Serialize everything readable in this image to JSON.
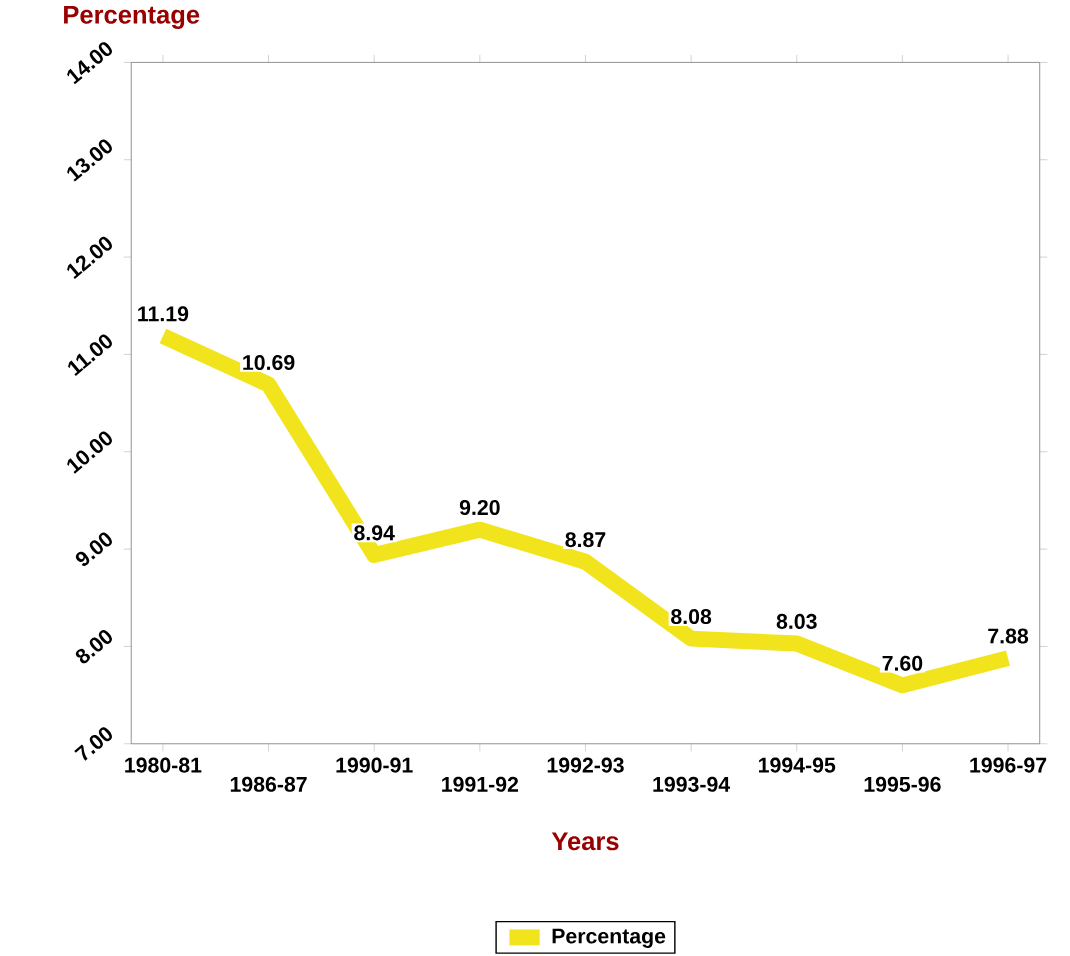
{
  "chart_data": {
    "type": "line",
    "ylabel": "Percentage",
    "xlabel": "Years",
    "categories": [
      "1980-81",
      "1986-87",
      "1990-91",
      "1991-92",
      "1992-93",
      "1993-94",
      "1994-95",
      "1995-96",
      "1996-97"
    ],
    "series": [
      {
        "name": "Percentage",
        "color": "#f2e41c",
        "values": [
          11.19,
          10.69,
          8.94,
          9.2,
          8.87,
          8.08,
          8.03,
          7.6,
          7.88
        ],
        "value_labels": [
          "11.19",
          "10.69",
          "8.94",
          "9.20",
          "8.87",
          "8.08",
          "8.03",
          "7.60",
          "7.88"
        ]
      }
    ],
    "ylim": [
      7,
      14
    ],
    "yticks": [
      {
        "value": 7,
        "label": "7.00"
      },
      {
        "value": 8,
        "label": "8.00"
      },
      {
        "value": 9,
        "label": "9.00"
      },
      {
        "value": 10,
        "label": "10.00"
      },
      {
        "value": 11,
        "label": "11.00"
      },
      {
        "value": 12,
        "label": "12.00"
      },
      {
        "value": 13,
        "label": "13.00"
      },
      {
        "value": 14,
        "label": "14.00"
      }
    ],
    "grid": false,
    "legend": "bottom",
    "marker": "none",
    "line_style": "solid"
  }
}
